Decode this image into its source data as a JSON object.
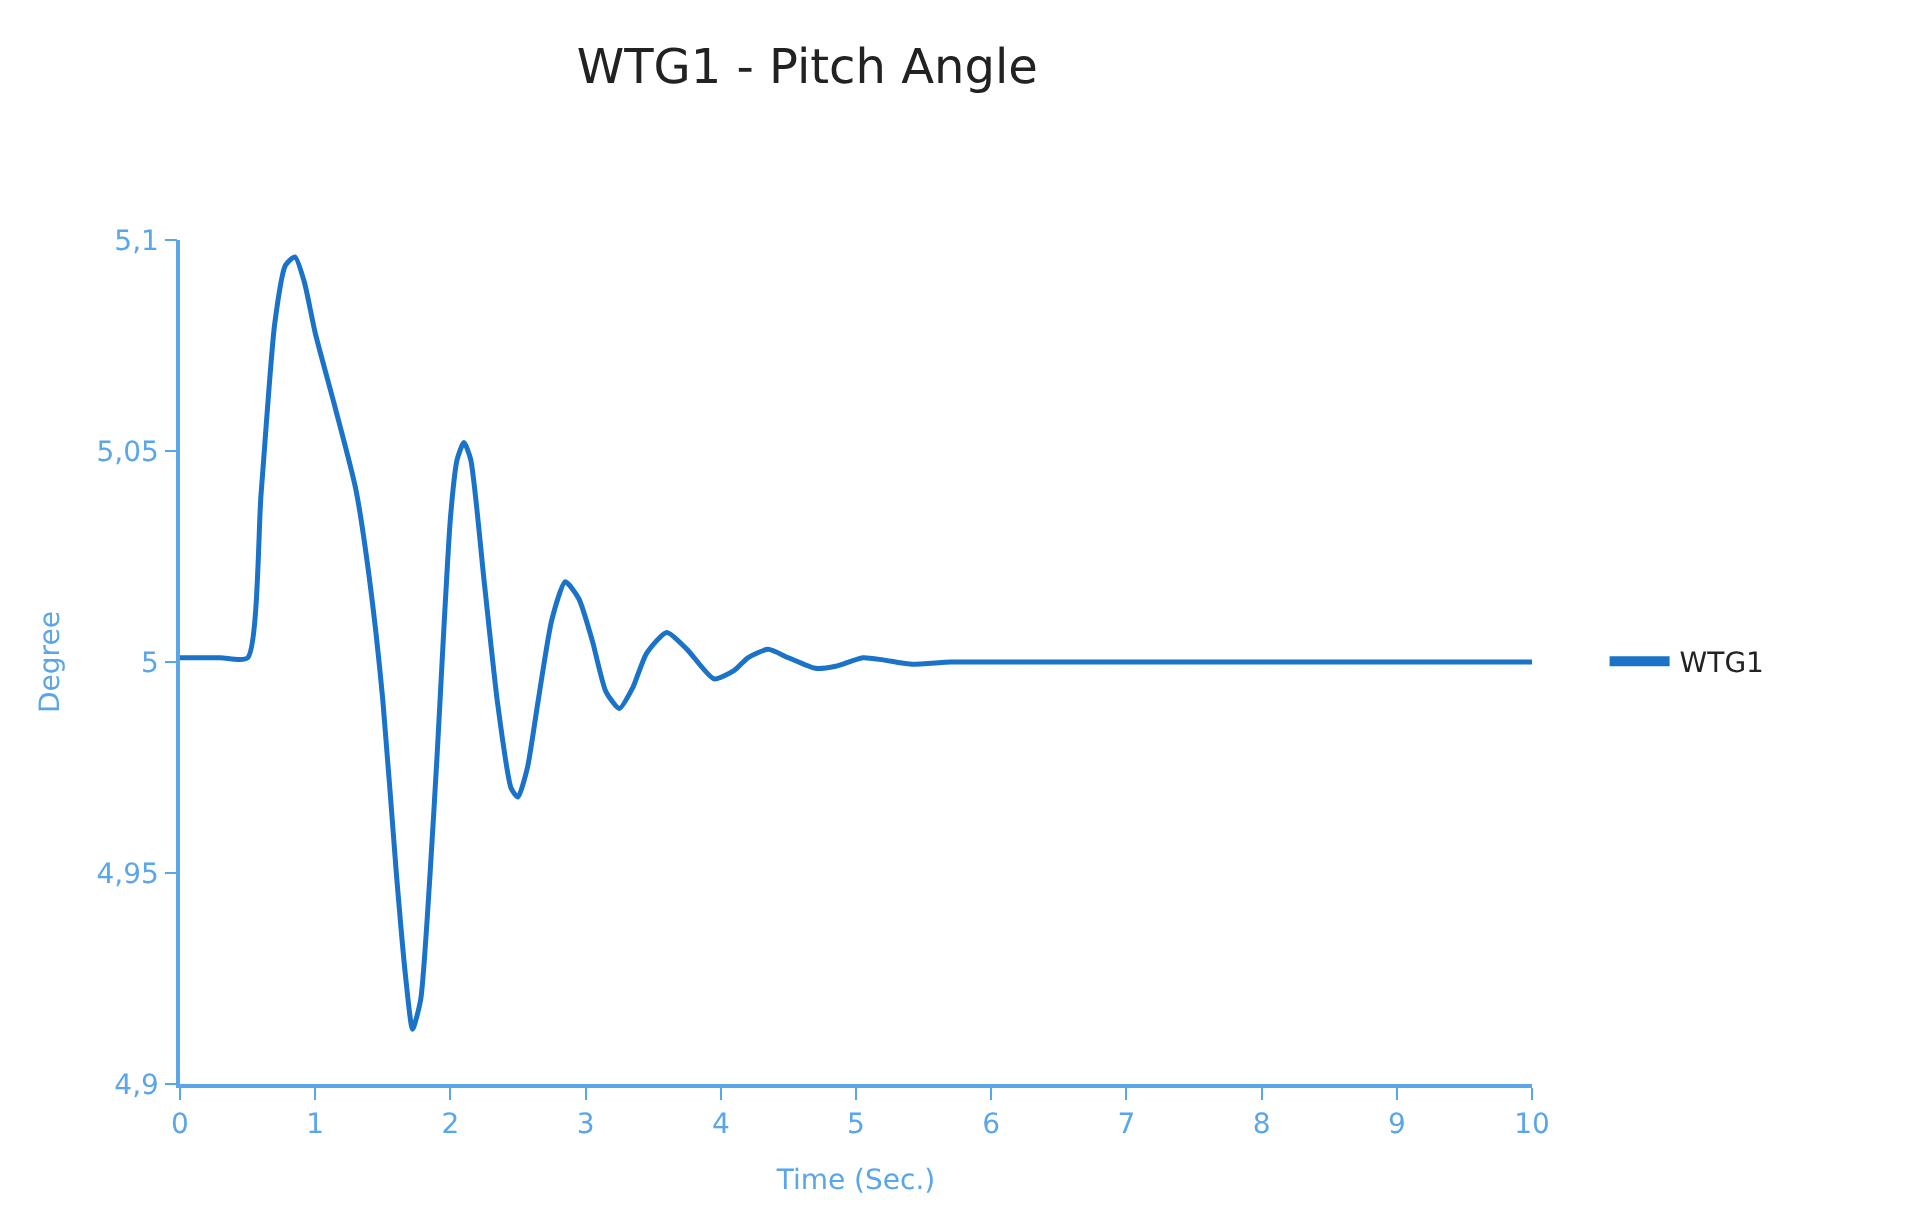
{
  "chart_data": {
    "type": "line",
    "title": "WTG1 - Pitch Angle",
    "xlabel": "Time (Sec.)",
    "ylabel": "Degree",
    "series": [
      {
        "name": "WTG1",
        "color": "#1a73c8",
        "x": [
          0,
          0.3,
          0.5,
          0.6,
          0.7,
          0.78,
          0.85,
          0.92,
          1.0,
          1.15,
          1.3,
          1.4,
          1.5,
          1.6,
          1.67,
          1.72,
          1.78,
          1.85,
          1.9,
          2.0,
          2.05,
          2.1,
          2.15,
          2.25,
          2.35,
          2.45,
          2.5,
          2.57,
          2.65,
          2.75,
          2.85,
          2.95,
          3.05,
          3.15,
          3.25,
          3.35,
          3.45,
          3.6,
          3.75,
          3.95,
          4.1,
          4.2,
          4.35,
          4.5,
          4.7,
          4.85,
          5.05,
          5.2,
          5.4,
          5.7,
          6,
          7,
          8,
          9,
          10
        ],
        "values": [
          5.001,
          5.001,
          5.001,
          5.04,
          5.08,
          5.094,
          5.096,
          5.09,
          5.078,
          5.06,
          5.041,
          5.02,
          4.991,
          4.95,
          4.925,
          4.913,
          4.92,
          4.95,
          4.977,
          5.034,
          5.048,
          5.052,
          5.048,
          5.019,
          4.99,
          4.97,
          4.968,
          4.975,
          4.991,
          5.01,
          5.019,
          5.015,
          5.005,
          4.993,
          4.989,
          4.994,
          5.002,
          5.007,
          5.003,
          4.996,
          4.998,
          5.001,
          5.003,
          5.001,
          4.9985,
          4.999,
          5.001,
          5.0005,
          4.9995,
          5.0,
          5.0,
          5.0,
          5.0,
          5.0,
          5.0
        ]
      }
    ],
    "xlim": [
      0,
      10
    ],
    "xticks": [
      0,
      1,
      2,
      3,
      4,
      5,
      6,
      7,
      8,
      9,
      10
    ],
    "ylim": [
      4.9,
      5.1
    ],
    "yticks": [
      {
        "value": 4.9,
        "label": "4,9"
      },
      {
        "value": 4.95,
        "label": "4,95"
      },
      {
        "value": 5,
        "label": "5"
      },
      {
        "value": 5.05,
        "label": "5,05"
      },
      {
        "value": 5.1,
        "label": "5,1"
      }
    ],
    "legend": "right",
    "marker": "none",
    "line_style": "solid"
  }
}
